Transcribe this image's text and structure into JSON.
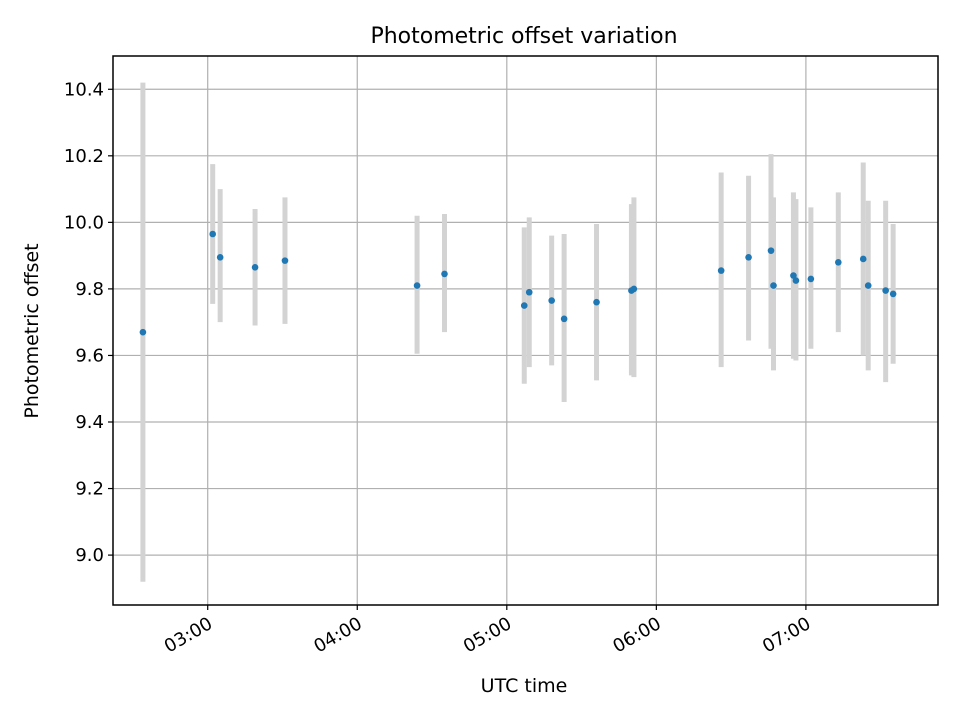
{
  "chart_data": {
    "type": "scatter",
    "title": "Photometric offset variation",
    "xlabel": "UTC time",
    "ylabel": "Photometric offset",
    "x_unit": "UTC time (HH:MM)",
    "xlim": [
      "02:22",
      "07:53"
    ],
    "ylim": [
      8.85,
      10.5
    ],
    "grid": true,
    "x_ticks": [
      "03:00",
      "04:00",
      "05:00",
      "06:00",
      "07:00"
    ],
    "y_ticks": [
      "9.0",
      "9.2",
      "9.4",
      "9.6",
      "9.8",
      "10.0",
      "10.2",
      "10.4"
    ],
    "y_tick_values": [
      9.0,
      9.2,
      9.4,
      9.6,
      9.8,
      10.0,
      10.2,
      10.4
    ],
    "point_color": "#1f77b4",
    "errorbar_color": "#d3d3d3",
    "points": [
      {
        "x": "02:34",
        "y": 9.67,
        "ylow": 8.92,
        "yhigh": 10.42
      },
      {
        "x": "03:02",
        "y": 9.965,
        "ylow": 9.755,
        "yhigh": 10.175
      },
      {
        "x": "03:05",
        "y": 9.895,
        "ylow": 9.7,
        "yhigh": 10.1
      },
      {
        "x": "03:19",
        "y": 9.865,
        "ylow": 9.69,
        "yhigh": 10.04
      },
      {
        "x": "03:31",
        "y": 9.885,
        "ylow": 9.695,
        "yhigh": 10.075
      },
      {
        "x": "04:24",
        "y": 9.81,
        "ylow": 9.605,
        "yhigh": 10.02
      },
      {
        "x": "04:35",
        "y": 9.845,
        "ylow": 9.67,
        "yhigh": 10.025
      },
      {
        "x": "05:07",
        "y": 9.75,
        "ylow": 9.515,
        "yhigh": 9.985
      },
      {
        "x": "05:09",
        "y": 9.79,
        "ylow": 9.565,
        "yhigh": 10.015
      },
      {
        "x": "05:18",
        "y": 9.765,
        "ylow": 9.57,
        "yhigh": 9.96
      },
      {
        "x": "05:23",
        "y": 9.71,
        "ylow": 9.46,
        "yhigh": 9.965
      },
      {
        "x": "05:36",
        "y": 9.76,
        "ylow": 9.525,
        "yhigh": 9.995
      },
      {
        "x": "05:50",
        "y": 9.795,
        "ylow": 9.54,
        "yhigh": 10.055
      },
      {
        "x": "05:51",
        "y": 9.8,
        "ylow": 9.535,
        "yhigh": 10.075
      },
      {
        "x": "06:26",
        "y": 9.855,
        "ylow": 9.565,
        "yhigh": 10.15
      },
      {
        "x": "06:37",
        "y": 9.895,
        "ylow": 9.645,
        "yhigh": 10.14
      },
      {
        "x": "06:46",
        "y": 9.915,
        "ylow": 9.62,
        "yhigh": 10.205
      },
      {
        "x": "06:47",
        "y": 9.81,
        "ylow": 9.555,
        "yhigh": 10.075
      },
      {
        "x": "06:55",
        "y": 9.84,
        "ylow": 9.59,
        "yhigh": 10.09
      },
      {
        "x": "06:56",
        "y": 9.825,
        "ylow": 9.585,
        "yhigh": 10.07
      },
      {
        "x": "07:02",
        "y": 9.83,
        "ylow": 9.62,
        "yhigh": 10.045
      },
      {
        "x": "07:13",
        "y": 9.88,
        "ylow": 9.67,
        "yhigh": 10.09
      },
      {
        "x": "07:23",
        "y": 9.89,
        "ylow": 9.6,
        "yhigh": 10.18
      },
      {
        "x": "07:25",
        "y": 9.81,
        "ylow": 9.555,
        "yhigh": 10.065
      },
      {
        "x": "07:32",
        "y": 9.795,
        "ylow": 9.52,
        "yhigh": 10.065
      },
      {
        "x": "07:35",
        "y": 9.785,
        "ylow": 9.575,
        "yhigh": 9.995
      }
    ]
  }
}
